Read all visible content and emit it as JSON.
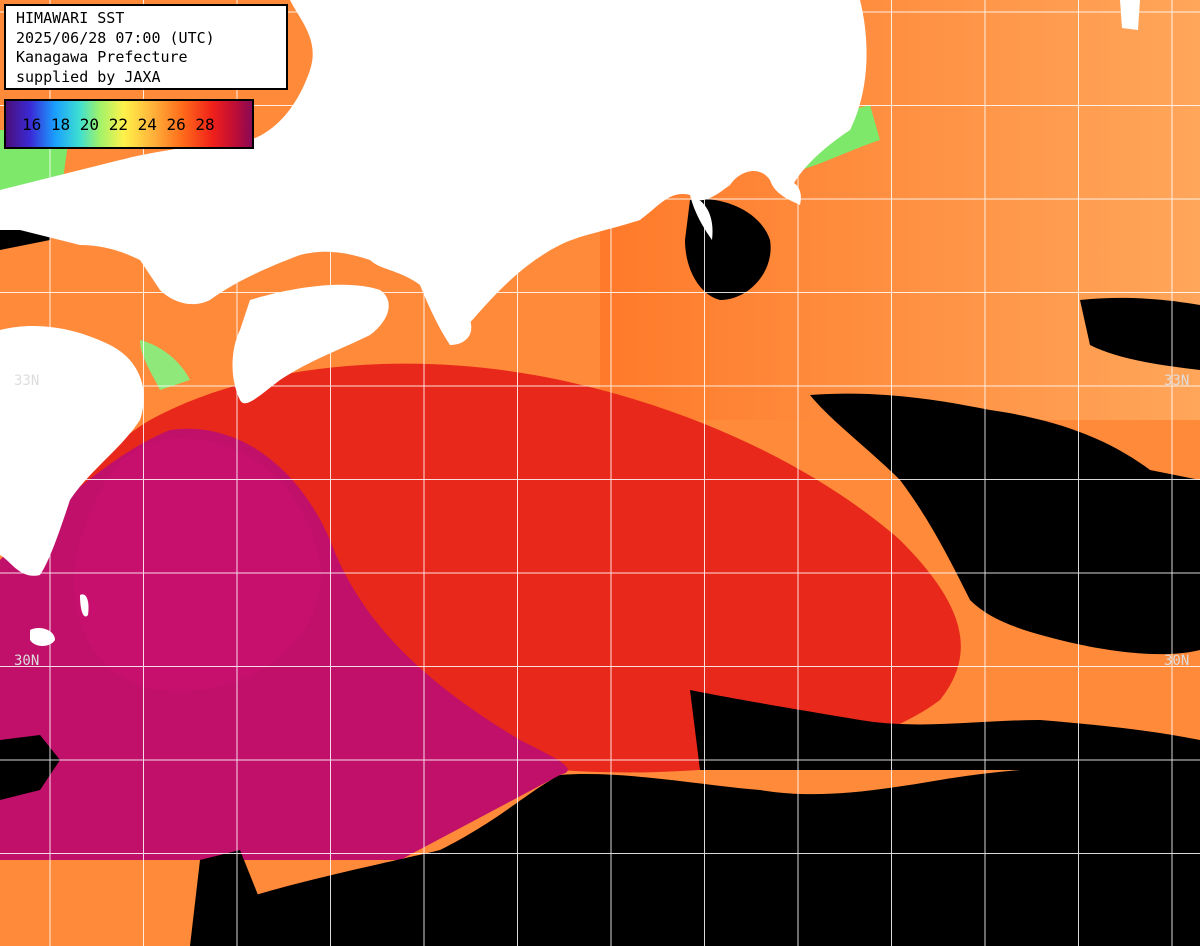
{
  "info": {
    "line1": "HIMAWARI SST",
    "line2": "2025/06/28 07:00 (UTC)",
    "line3": "Kanagawa Prefecture",
    "line4": "supplied by JAXA"
  },
  "legend": {
    "labels": "16 18 20 22 24 26 28",
    "values": [
      16,
      18,
      20,
      22,
      24,
      26,
      28
    ]
  },
  "grid": {
    "lat_labels": [
      "33N",
      "33N",
      "30N",
      "30N"
    ]
  },
  "colors": {
    "land": "#ffffff",
    "no_data": "#000000",
    "warm_magenta": "#c0106a",
    "red": "#e8281a",
    "orange": "#ff7a2a",
    "light_orange": "#ffa65a",
    "green_coastal": "#7ee86a",
    "gridline": "#ffffff"
  }
}
